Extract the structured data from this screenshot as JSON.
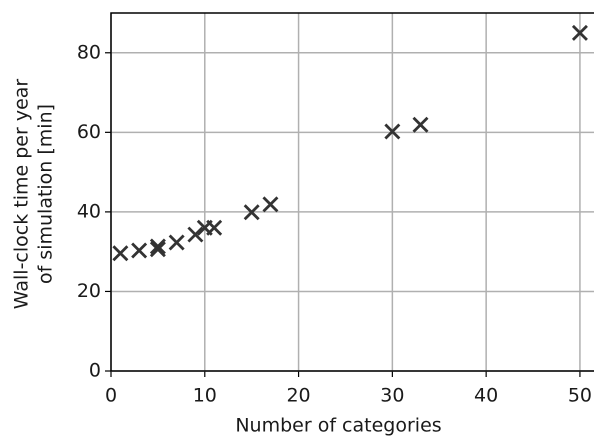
{
  "chart_data": {
    "type": "scatter",
    "xlabel": "Number of categories",
    "ylabel": [
      "Wall-clock time per year",
      "of simulation [min]"
    ],
    "x": [
      1,
      3,
      5,
      5,
      7,
      9,
      10,
      11,
      15,
      17,
      30,
      33,
      50
    ],
    "values": [
      29.6,
      30.3,
      31.3,
      30.6,
      32.3,
      34.3,
      36,
      36,
      39.9,
      41.9,
      60.2,
      61.9,
      85
    ],
    "color": "#333333",
    "xlim": [
      0,
      51.5
    ],
    "xticks": [
      0,
      10,
      20,
      30,
      40,
      50
    ],
    "ylim": [
      0,
      90
    ],
    "yticks": [
      0,
      20,
      40,
      60,
      80
    ],
    "grid": true
  }
}
